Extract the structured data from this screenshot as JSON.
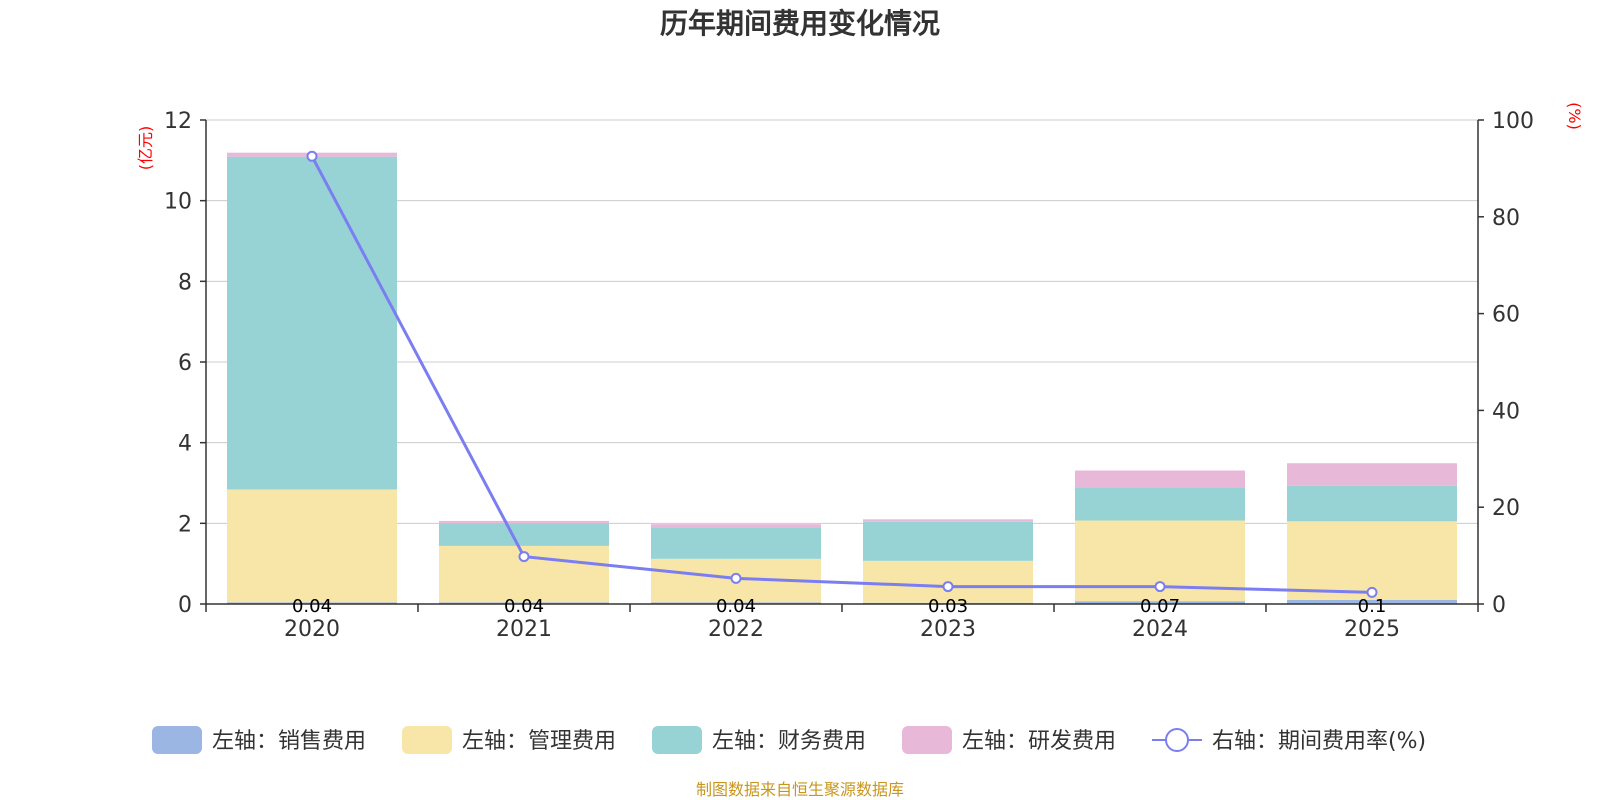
{
  "chart_data": {
    "type": "bar",
    "title": "历年期间费用变化情况",
    "categories": [
      "2020",
      "2021",
      "2022",
      "2023",
      "2024",
      "2025"
    ],
    "left_axis": {
      "unit": "(亿元)",
      "ylim": [
        0,
        12
      ],
      "ticks": [
        "0",
        "2",
        "4",
        "6",
        "8",
        "10",
        "12"
      ]
    },
    "right_axis": {
      "unit": "(%)",
      "ylim": [
        0,
        100
      ],
      "ticks": [
        "0",
        "20",
        "40",
        "60",
        "80",
        "100"
      ]
    },
    "series": [
      {
        "name": "左轴：销售费用",
        "type": "bar",
        "axis": "left",
        "color": "#9cb6e3",
        "values": [
          0.04,
          0.04,
          0.04,
          0.03,
          0.07,
          0.1
        ]
      },
      {
        "name": "左轴：管理费用",
        "type": "bar",
        "axis": "left",
        "color": "#f8e6a8",
        "values": [
          2.8,
          1.4,
          1.08,
          1.04,
          2.0,
          1.95
        ]
      },
      {
        "name": "左轴：财务费用",
        "type": "bar",
        "axis": "left",
        "color": "#97d3d4",
        "values": [
          8.25,
          0.56,
          0.78,
          0.97,
          0.82,
          0.88
        ]
      },
      {
        "name": "左轴：研发费用",
        "type": "bar",
        "axis": "left",
        "color": "#e8b8d8",
        "values": [
          0.1,
          0.06,
          0.08,
          0.06,
          0.42,
          0.56
        ]
      },
      {
        "name": "右轴：期间费用率(%)",
        "type": "line",
        "axis": "right",
        "color": "#7b7ef0",
        "values": [
          92.5,
          9.8,
          5.3,
          3.6,
          3.6,
          2.4
        ]
      }
    ],
    "data_labels": [
      "0.04",
      "0.04",
      "0.04",
      "0.03",
      "0.07",
      "0.1"
    ],
    "grid": true,
    "legend_position": "bottom"
  },
  "source_note": "制图数据来自恒生聚源数据库"
}
